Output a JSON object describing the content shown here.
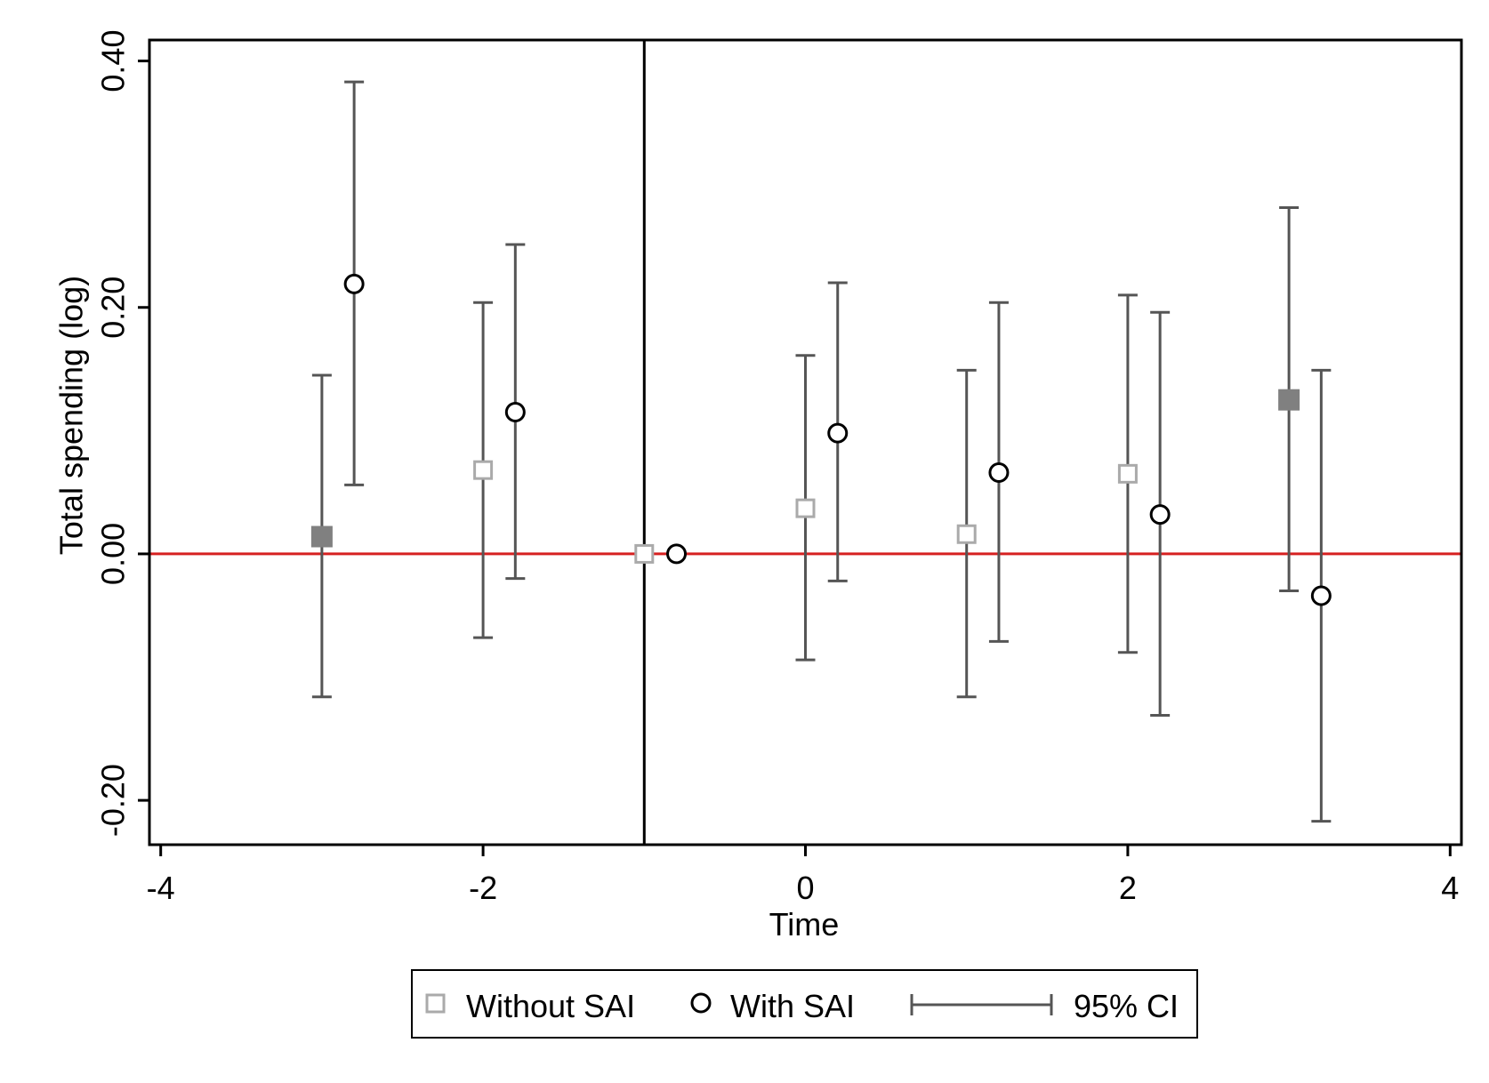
{
  "chart_data": {
    "type": "scatter",
    "subtype": "coefficient plot with 95% confidence intervals",
    "title": "",
    "xlabel": "Time",
    "ylabel": "Total spending (log)",
    "xlim": [
      -4.07,
      4.07
    ],
    "ylim": [
      -0.236,
      0.417
    ],
    "x_ticks": [
      -4,
      -2,
      0,
      2,
      4
    ],
    "x_tick_labels": [
      "-4",
      "-2",
      "0",
      "2",
      "4"
    ],
    "y_ticks": [
      -0.2,
      0.0,
      0.2,
      0.4
    ],
    "y_tick_labels": [
      "-0.20",
      "0.00",
      "0.20",
      "0.40"
    ],
    "grid": false,
    "reference_lines": [
      {
        "orientation": "horizontal",
        "value": 0.0,
        "color": "#d62020"
      },
      {
        "orientation": "vertical",
        "value": -1,
        "color": "#000000"
      }
    ],
    "series": [
      {
        "name": "Without SAI",
        "marker": "square",
        "color": "#aaaaaa",
        "points": [
          {
            "x": -3,
            "y": 0.014,
            "ci_low": -0.116,
            "ci_high": 0.145,
            "filled": true
          },
          {
            "x": -2,
            "y": 0.068,
            "ci_low": -0.068,
            "ci_high": 0.204,
            "filled": false
          },
          {
            "x": -1,
            "y": 0.0,
            "ci_low": null,
            "ci_high": null,
            "filled": false
          },
          {
            "x": 0,
            "y": 0.037,
            "ci_low": -0.086,
            "ci_high": 0.161,
            "filled": false
          },
          {
            "x": 1,
            "y": 0.016,
            "ci_low": -0.116,
            "ci_high": 0.149,
            "filled": false
          },
          {
            "x": 2,
            "y": 0.065,
            "ci_low": -0.08,
            "ci_high": 0.21,
            "filled": false
          },
          {
            "x": 3,
            "y": 0.125,
            "ci_low": -0.03,
            "ci_high": 0.281,
            "filled": true
          }
        ]
      },
      {
        "name": "With SAI",
        "marker": "circle",
        "color": "#000000",
        "points": [
          {
            "x": -2.8,
            "y": 0.219,
            "ci_low": 0.056,
            "ci_high": 0.383
          },
          {
            "x": -1.8,
            "y": 0.115,
            "ci_low": -0.02,
            "ci_high": 0.251
          },
          {
            "x": -0.8,
            "y": 0.0,
            "ci_low": null,
            "ci_high": null
          },
          {
            "x": 0.2,
            "y": 0.098,
            "ci_low": -0.022,
            "ci_high": 0.22
          },
          {
            "x": 1.2,
            "y": 0.066,
            "ci_low": -0.071,
            "ci_high": 0.204
          },
          {
            "x": 2.2,
            "y": 0.032,
            "ci_low": -0.131,
            "ci_high": 0.196
          },
          {
            "x": 3.2,
            "y": -0.034,
            "ci_low": -0.217,
            "ci_high": 0.149
          }
        ]
      }
    ],
    "legend": {
      "position": "bottom",
      "entries": [
        {
          "label": "Without SAI",
          "symbol": "square-hollow"
        },
        {
          "label": "With SAI",
          "symbol": "circle-hollow"
        },
        {
          "label": "95% CI",
          "symbol": "capped-line"
        }
      ]
    },
    "colors": {
      "ci_line": "#555555",
      "square_fill": "#808080",
      "square_outline": "#aaaaaa",
      "circle_outline": "#000000",
      "zero_line": "#d62020",
      "frame": "#000000"
    }
  }
}
